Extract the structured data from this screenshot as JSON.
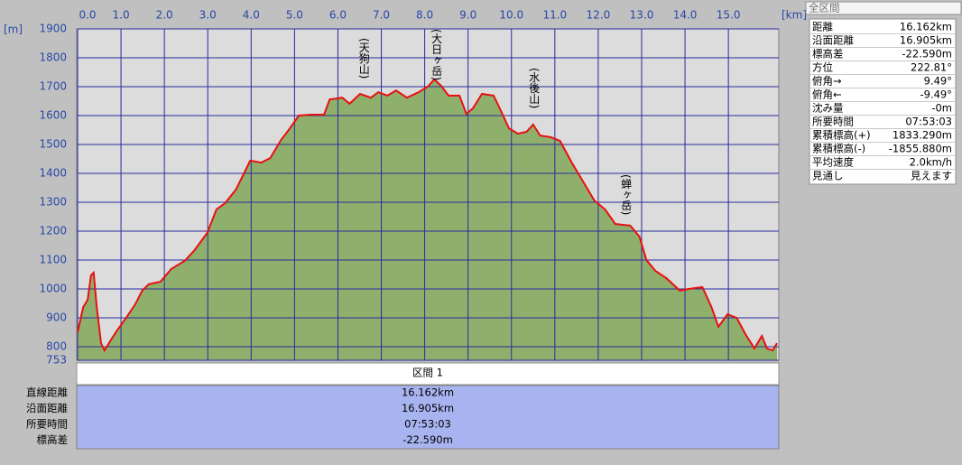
{
  "chart_data": {
    "type": "area",
    "x_unit": "[km]",
    "y_unit": "[m]",
    "xlim": [
      0,
      16.162
    ],
    "ylim": [
      753,
      1900
    ],
    "xticks": [
      {
        "value": 0,
        "label": "0.0"
      },
      {
        "value": 1,
        "label": "1.0"
      },
      {
        "value": 2,
        "label": "2.0"
      },
      {
        "value": 3,
        "label": "3.0"
      },
      {
        "value": 4,
        "label": "4.0"
      },
      {
        "value": 5,
        "label": "5.0"
      },
      {
        "value": 6,
        "label": "6.0"
      },
      {
        "value": 7,
        "label": "7.0"
      },
      {
        "value": 8,
        "label": "8.0"
      },
      {
        "value": 9,
        "label": "9.0"
      },
      {
        "value": 10,
        "label": "10.0"
      },
      {
        "value": 11,
        "label": "11.0"
      },
      {
        "value": 12,
        "label": "12.0"
      },
      {
        "value": 13,
        "label": "13.0"
      },
      {
        "value": 14,
        "label": "14.0"
      },
      {
        "value": 15,
        "label": "15.0"
      }
    ],
    "yticks": [
      753,
      800,
      900,
      1000,
      1100,
      1200,
      1300,
      1400,
      1500,
      1600,
      1700,
      1800,
      1900
    ],
    "grid": true,
    "line_color": "#e81010",
    "fill_color": "#8fb06c",
    "x": [
      0,
      0.13,
      0.23,
      0.31,
      0.37,
      0.44,
      0.54,
      0.62,
      0.75,
      0.91,
      1.12,
      1.33,
      1.49,
      1.64,
      1.91,
      2.16,
      2.47,
      2.68,
      2.99,
      3.2,
      3.4,
      3.65,
      3.98,
      4.23,
      4.44,
      4.69,
      4.85,
      5.1,
      5.37,
      5.68,
      5.81,
      6.1,
      6.27,
      6.51,
      6.76,
      6.93,
      7.14,
      7.34,
      7.59,
      7.86,
      8.07,
      8.22,
      8.38,
      8.55,
      8.8,
      8.96,
      9.11,
      9.32,
      9.59,
      9.73,
      9.94,
      10.15,
      10.35,
      10.5,
      10.66,
      10.91,
      11.12,
      11.39,
      11.66,
      11.91,
      12.16,
      12.39,
      12.74,
      12.95,
      13.11,
      13.32,
      13.57,
      13.88,
      14.09,
      14.4,
      14.61,
      14.77,
      14.98,
      15.19,
      15.39,
      15.6,
      15.77,
      15.89,
      16.02,
      16.12
    ],
    "series": [
      {
        "values": [
          850,
          937,
          962,
          1047,
          1056,
          937,
          812,
          787,
          819,
          856,
          900,
          947,
          994,
          1016,
          1025,
          1069,
          1097,
          1131,
          1194,
          1275,
          1297,
          1344,
          1444,
          1437,
          1453,
          1516,
          1547,
          1600,
          1603,
          1603,
          1656,
          1662,
          1641,
          1675,
          1662,
          1681,
          1669,
          1687,
          1662,
          1681,
          1700,
          1725,
          1703,
          1669,
          1669,
          1606,
          1625,
          1675,
          1669,
          1625,
          1556,
          1537,
          1544,
          1569,
          1531,
          1525,
          1512,
          1437,
          1369,
          1306,
          1275,
          1225,
          1219,
          1181,
          1100,
          1062,
          1037,
          994,
          1000,
          1006,
          937,
          869,
          912,
          900,
          844,
          794,
          837,
          794,
          787,
          812
        ]
      }
    ],
    "annotations": [
      {
        "text": "(天狗山)",
        "x": 6.6
      },
      {
        "text": "(大日ヶ岳)",
        "x": 8.27
      },
      {
        "text": "(水後山)",
        "x": 10.52
      },
      {
        "text": "(蝉ヶ岳)",
        "x": 12.64
      }
    ]
  },
  "summary_panel": {
    "title": "全区間",
    "rows": [
      [
        "距離",
        "16.162km"
      ],
      [
        "沿面距離",
        "16.905km"
      ],
      [
        "標高差",
        "-22.590m"
      ],
      [
        "方位",
        "222.81°"
      ],
      [
        "俯角→",
        "9.49°"
      ],
      [
        "俯角←",
        "-9.49°"
      ],
      [
        "沈み量",
        "-0m"
      ],
      [
        "所要時間",
        "07:53:03"
      ],
      [
        "累積標高(+)",
        "1833.290m"
      ],
      [
        "累積標高(-)",
        "-1855.880m"
      ],
      [
        "平均速度",
        "2.0km/h"
      ],
      [
        "見通し",
        "見えます"
      ]
    ]
  },
  "section_table": {
    "header": "区間 1",
    "rows": [
      [
        "直線距離",
        "16.162km"
      ],
      [
        "沿面距離",
        "16.905km"
      ],
      [
        "所要時間",
        "07:53:03"
      ],
      [
        "標高差",
        "-22.590m"
      ]
    ]
  }
}
